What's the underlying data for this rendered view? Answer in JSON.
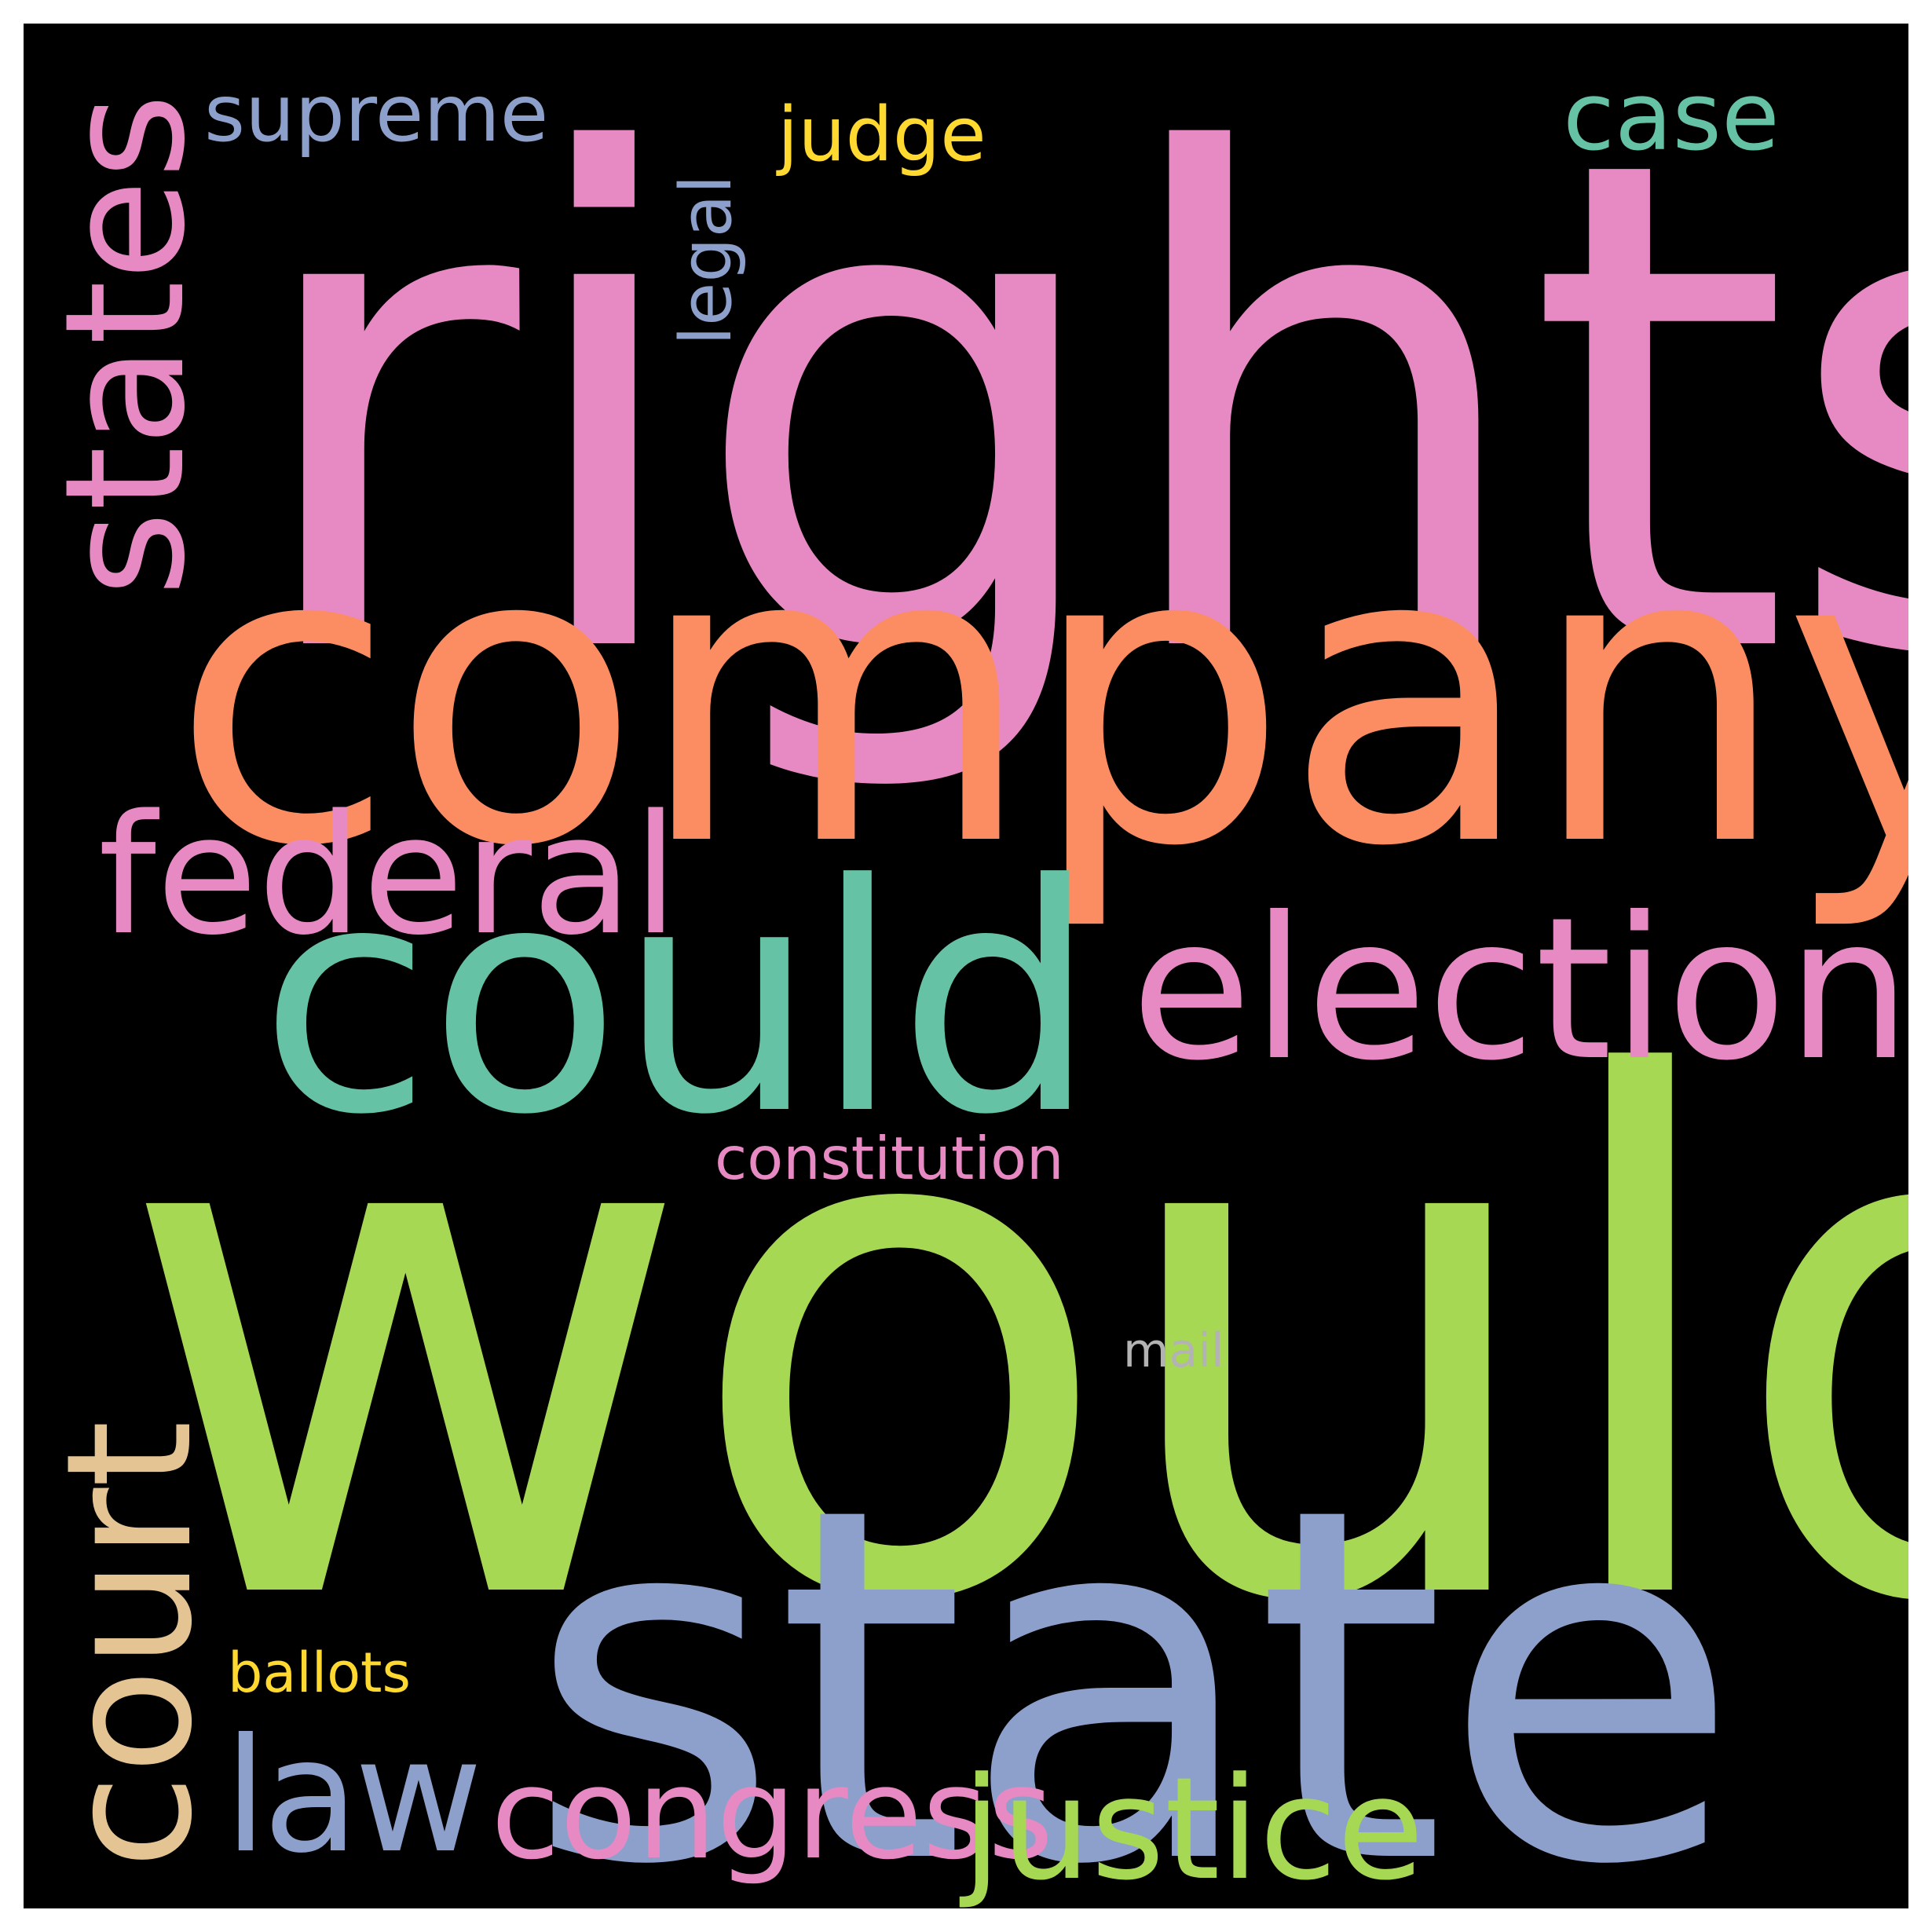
{
  "wordcloud": {
    "background": "#000000",
    "words": {
      "rights": {
        "text": "rights",
        "color": "#e78ac3"
      },
      "company": {
        "text": "company",
        "color": "#fc8d62"
      },
      "would": {
        "text": "would",
        "color": "#a6d854"
      },
      "state": {
        "text": "state",
        "color": "#8da0cb"
      },
      "could": {
        "text": "could",
        "color": "#66c2a5"
      },
      "election": {
        "text": "election",
        "color": "#e78ac3"
      },
      "federal": {
        "text": "federal",
        "color": "#e78ac3"
      },
      "states": {
        "text": "states",
        "color": "#e78ac3"
      },
      "court": {
        "text": "court",
        "color": "#e5c494"
      },
      "law": {
        "text": "law",
        "color": "#8da0cb"
      },
      "congress": {
        "text": "congress",
        "color": "#e78ac3"
      },
      "justice": {
        "text": "justice",
        "color": "#a6d854"
      },
      "supreme": {
        "text": "supreme",
        "color": "#8da0cb"
      },
      "judge": {
        "text": "judge",
        "color": "#ffd92f"
      },
      "case": {
        "text": "case",
        "color": "#66c2a5"
      },
      "legal": {
        "text": "legal",
        "color": "#8da0cb"
      },
      "constitution": {
        "text": "constitution",
        "color": "#e78ac3"
      },
      "mail": {
        "text": "mail",
        "color": "#b3b3b3"
      },
      "ballots": {
        "text": "ballots",
        "color": "#ffd92f"
      }
    }
  }
}
